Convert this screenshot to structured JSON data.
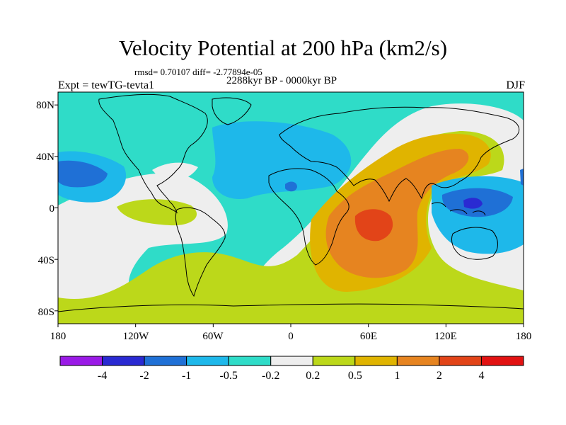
{
  "title": "Velocity Potential at 200 hPa (km2/s)",
  "stats": "rmsd= 0.70107 diff= -2.77894e-05",
  "subtitle": "2288kyr BP - 0000kyr BP",
  "experiment": "Expt = tewTG-tevta1",
  "season": "DJF",
  "map": {
    "lat_ticks": [
      "80N",
      "40N",
      "0",
      "40S",
      "80S"
    ],
    "lon_ticks": [
      "180",
      "120W",
      "60W",
      "0",
      "60E",
      "120E",
      "180"
    ],
    "lon_range": [
      -180,
      180
    ],
    "lat_range": [
      -90,
      90
    ]
  },
  "colorbar": {
    "colors": [
      "#9a1ae6",
      "#2a2ad2",
      "#1f70d6",
      "#1eb8ea",
      "#2fdcc8",
      "#eeeeee",
      "#bcd81a",
      "#e0b400",
      "#e68420",
      "#e24418",
      "#e21212"
    ],
    "labels": [
      "-4",
      "-2",
      "-1",
      "-0.5",
      "-0.2",
      "0.2",
      "0.5",
      "1",
      "2",
      "4"
    ]
  },
  "palette": {
    "ocean_bg": "#2fdcc8",
    "land_outline": "#000000"
  }
}
